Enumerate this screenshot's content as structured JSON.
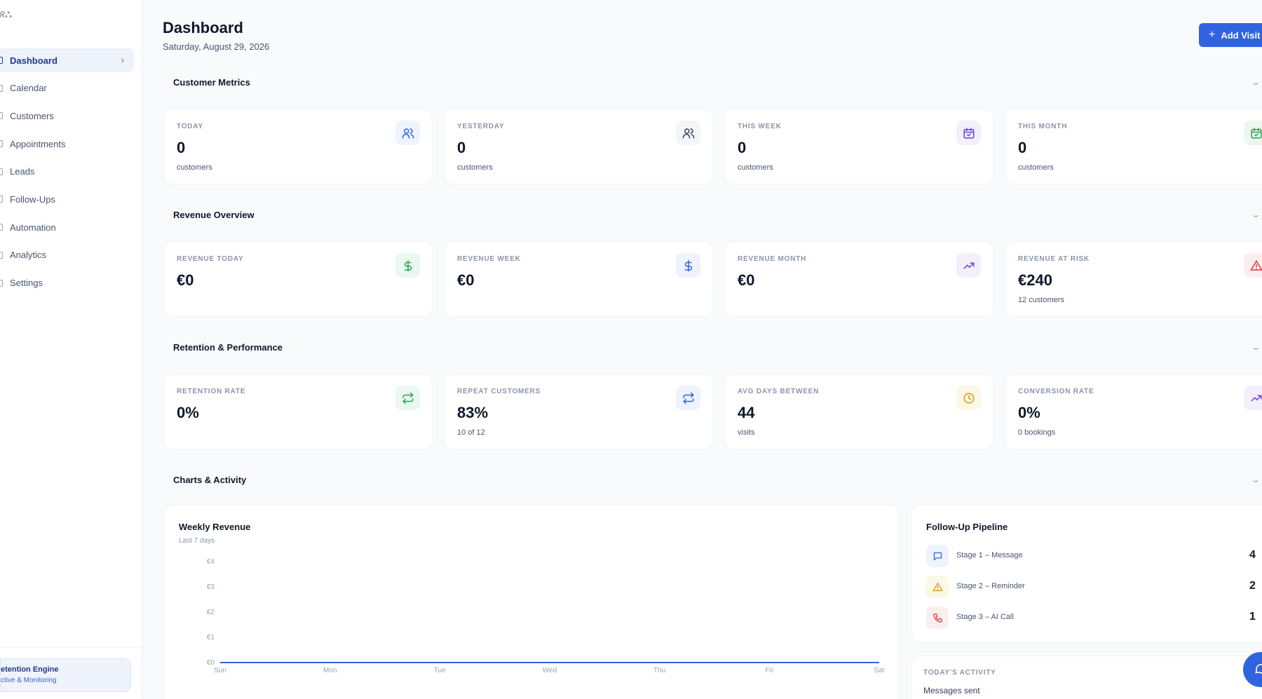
{
  "sidebar": {
    "logo": "ᖇ⁂",
    "items": [
      {
        "label": "Dashboard",
        "active": true
      },
      {
        "label": "Calendar"
      },
      {
        "label": "Customers"
      },
      {
        "label": "Appointments"
      },
      {
        "label": "Leads"
      },
      {
        "label": "Follow-Ups"
      },
      {
        "label": "Automation"
      },
      {
        "label": "Analytics"
      },
      {
        "label": "Settings"
      }
    ],
    "engine": {
      "title": "etention Engine",
      "subtitle": "ctive & Monitoring"
    }
  },
  "header": {
    "title": "Dashboard",
    "date": "Saturday, August 29, 2026",
    "add_button": "Add Visit"
  },
  "sections": {
    "customer_metrics": {
      "title": "Customer Metrics",
      "cards": [
        {
          "label": "TODAY",
          "value": "0",
          "sub": "customers",
          "icon": "users-icon"
        },
        {
          "label": "YESTERDAY",
          "value": "0",
          "sub": "customers",
          "icon": "users-icon"
        },
        {
          "label": "THIS WEEK",
          "value": "0",
          "sub": "customers",
          "icon": "calendar-check-icon"
        },
        {
          "label": "THIS MONTH",
          "value": "0",
          "sub": "customers",
          "icon": "calendar-check-icon"
        }
      ]
    },
    "revenue_overview": {
      "title": "Revenue Overview",
      "cards": [
        {
          "label": "REVENUE TODAY",
          "value": "€0",
          "sub": "",
          "icon": "dollar-icon"
        },
        {
          "label": "REVENUE WEEK",
          "value": "€0",
          "sub": "",
          "icon": "dollar-icon"
        },
        {
          "label": "REVENUE MONTH",
          "value": "€0",
          "sub": "",
          "icon": "trending-up-icon"
        },
        {
          "label": "REVENUE AT RISK",
          "value": "€240",
          "sub": "12 customers",
          "icon": "alert-triangle-icon"
        }
      ]
    },
    "retention": {
      "title": "Retention & Performance",
      "cards": [
        {
          "label": "RETENTION RATE",
          "value": "0%",
          "sub": "",
          "icon": "repeat-icon"
        },
        {
          "label": "REPEAT CUSTOMERS",
          "value": "83%",
          "sub": "10 of 12",
          "icon": "repeat-icon"
        },
        {
          "label": "AVG DAYS BETWEEN",
          "value": "44",
          "sub": "visits",
          "icon": "clock-icon"
        },
        {
          "label": "CONVERSION RATE",
          "value": "0%",
          "sub": "0 bookings",
          "icon": "trending-up-icon"
        }
      ]
    },
    "charts_activity": {
      "title": "Charts & Activity"
    }
  },
  "weekly_revenue": {
    "title": "Weekly Revenue",
    "subtitle": "Last 7 days"
  },
  "chart_data": {
    "type": "line",
    "title": "Weekly Revenue",
    "subtitle": "Last 7 days",
    "x": [
      "Sun",
      "Mon",
      "Tue",
      "Wed",
      "Thu",
      "Fri",
      "Sat"
    ],
    "values": [
      0,
      0,
      0,
      0,
      0,
      0,
      0
    ],
    "y_ticks": [
      "€0",
      "€1",
      "€2",
      "€3",
      "€4"
    ],
    "ylim": [
      0,
      4
    ],
    "grid": false,
    "line_color": "#2f63e0"
  },
  "pipeline": {
    "title": "Follow-Up Pipeline",
    "stages": [
      {
        "label": "Stage 1 – Message",
        "count": "4",
        "icon": "message-icon"
      },
      {
        "label": "Stage 2 – Reminder",
        "count": "2",
        "icon": "alert-triangle-icon"
      },
      {
        "label": "Stage 3 – AI Call",
        "count": "1",
        "icon": "phone-icon"
      }
    ]
  },
  "activity": {
    "title": "TODAY'S ACTIVITY",
    "row_label": "Messages sent"
  }
}
